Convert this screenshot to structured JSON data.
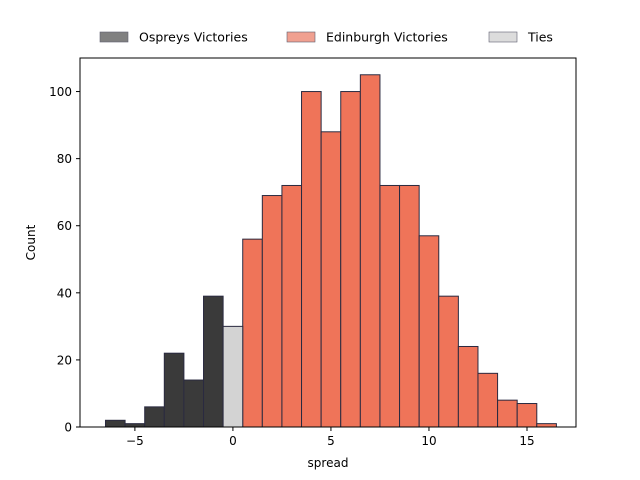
{
  "chart_data": {
    "type": "bar",
    "xlabel": "spread",
    "ylabel": "Count",
    "xlim": [
      -7.8,
      17.5
    ],
    "ylim": [
      0,
      110
    ],
    "xticks": [
      -5,
      0,
      5,
      10,
      15
    ],
    "yticks": [
      0,
      20,
      40,
      60,
      80,
      100
    ],
    "bin_width": 1,
    "legend_position": "top-center",
    "series": [
      {
        "name": "Ospreys Victories",
        "color": "#3a3a3a",
        "legend_color": "#808080",
        "bins": [
          {
            "x0": -6.5,
            "x1": -5.5,
            "count": 2
          },
          {
            "x0": -5.5,
            "x1": -4.5,
            "count": 1
          },
          {
            "x0": -4.5,
            "x1": -3.5,
            "count": 6
          },
          {
            "x0": -3.5,
            "x1": -2.5,
            "count": 22
          },
          {
            "x0": -2.5,
            "x1": -1.5,
            "count": 14
          },
          {
            "x0": -1.5,
            "x1": -0.5,
            "count": 39
          }
        ]
      },
      {
        "name": "Edinburgh Victories",
        "color": "#ef7459",
        "legend_color": "#f0a090",
        "bins": [
          {
            "x0": 0.5,
            "x1": 1.5,
            "count": 56
          },
          {
            "x0": 1.5,
            "x1": 2.5,
            "count": 69
          },
          {
            "x0": 2.5,
            "x1": 3.5,
            "count": 72
          },
          {
            "x0": 3.5,
            "x1": 4.5,
            "count": 100
          },
          {
            "x0": 4.5,
            "x1": 5.5,
            "count": 88
          },
          {
            "x0": 5.5,
            "x1": 6.5,
            "count": 100
          },
          {
            "x0": 6.5,
            "x1": 7.5,
            "count": 105
          },
          {
            "x0": 7.5,
            "x1": 8.5,
            "count": 72
          },
          {
            "x0": 8.5,
            "x1": 9.5,
            "count": 72
          },
          {
            "x0": 9.5,
            "x1": 10.5,
            "count": 57
          },
          {
            "x0": 10.5,
            "x1": 11.5,
            "count": 39
          },
          {
            "x0": 11.5,
            "x1": 12.5,
            "count": 24
          },
          {
            "x0": 12.5,
            "x1": 13.5,
            "count": 16
          },
          {
            "x0": 13.5,
            "x1": 14.5,
            "count": 8
          },
          {
            "x0": 14.5,
            "x1": 15.5,
            "count": 7
          },
          {
            "x0": 15.5,
            "x1": 16.5,
            "count": 1
          }
        ]
      },
      {
        "name": "Ties",
        "color": "#d3d3d3",
        "legend_color": "#dcdcdc",
        "bins": [
          {
            "x0": -0.5,
            "x1": 0.5,
            "count": 30
          }
        ]
      }
    ]
  }
}
